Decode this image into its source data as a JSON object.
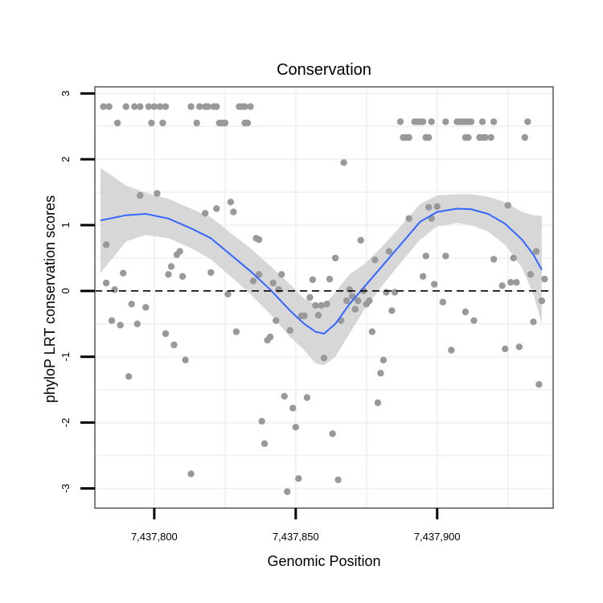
{
  "chart_data": {
    "type": "scatter",
    "title": "Conservation",
    "xlabel": "Genomic Position",
    "ylabel": "phyloP LRT conservation scores",
    "xlim": [
      7437779,
      7437941
    ],
    "ylim": [
      -3.3,
      3.1
    ],
    "x_ticks": [
      7437800,
      7437850,
      7437900
    ],
    "x_tick_labels": [
      "7,437,800",
      "7,437,850",
      "7,437,900"
    ],
    "y_ticks": [
      -3,
      -2,
      -1,
      0,
      1,
      2,
      3
    ],
    "y_tick_labels": [
      "-3",
      "-2",
      "-1",
      "0",
      "1",
      "2",
      "3"
    ],
    "grid": true,
    "reference_line": {
      "y": 0,
      "style": "dashed"
    },
    "colors": {
      "points": "#999999",
      "smooth_line": "#3366ff",
      "confidence_band": "#d3d3d3",
      "panel_border": "#808080",
      "grid": "#f2f2f2"
    },
    "points": [
      {
        "x": 7437782,
        "y": 2.8
      },
      {
        "x": 7437784,
        "y": 2.8
      },
      {
        "x": 7437787,
        "y": 2.55
      },
      {
        "x": 7437790,
        "y": 2.8
      },
      {
        "x": 7437793,
        "y": 2.8
      },
      {
        "x": 7437795,
        "y": 2.8
      },
      {
        "x": 7437798,
        "y": 2.8
      },
      {
        "x": 7437800,
        "y": 2.8
      },
      {
        "x": 7437802,
        "y": 2.8
      },
      {
        "x": 7437804,
        "y": 2.8
      },
      {
        "x": 7437799,
        "y": 2.55
      },
      {
        "x": 7437803,
        "y": 2.55
      },
      {
        "x": 7437813,
        "y": 2.8
      },
      {
        "x": 7437816,
        "y": 2.8
      },
      {
        "x": 7437818,
        "y": 2.8
      },
      {
        "x": 7437819,
        "y": 2.8
      },
      {
        "x": 7437821,
        "y": 2.8
      },
      {
        "x": 7437822,
        "y": 2.8
      },
      {
        "x": 7437815,
        "y": 2.55
      },
      {
        "x": 7437823,
        "y": 2.55
      },
      {
        "x": 7437824,
        "y": 2.55
      },
      {
        "x": 7437825,
        "y": 2.55
      },
      {
        "x": 7437830,
        "y": 2.8
      },
      {
        "x": 7437831,
        "y": 2.8
      },
      {
        "x": 7437832,
        "y": 2.8
      },
      {
        "x": 7437834,
        "y": 2.8
      },
      {
        "x": 7437832,
        "y": 2.55
      },
      {
        "x": 7437833,
        "y": 2.55
      },
      {
        "x": 7437887,
        "y": 2.57
      },
      {
        "x": 7437892,
        "y": 2.57
      },
      {
        "x": 7437893,
        "y": 2.57
      },
      {
        "x": 7437894,
        "y": 2.57
      },
      {
        "x": 7437895,
        "y": 2.57
      },
      {
        "x": 7437898,
        "y": 2.57
      },
      {
        "x": 7437903,
        "y": 2.57
      },
      {
        "x": 7437907,
        "y": 2.57
      },
      {
        "x": 7437908,
        "y": 2.57
      },
      {
        "x": 7437909,
        "y": 2.57
      },
      {
        "x": 7437910,
        "y": 2.57
      },
      {
        "x": 7437911,
        "y": 2.57
      },
      {
        "x": 7437912,
        "y": 2.57
      },
      {
        "x": 7437916,
        "y": 2.57
      },
      {
        "x": 7437920,
        "y": 2.57
      },
      {
        "x": 7437932,
        "y": 2.57
      },
      {
        "x": 7437888,
        "y": 2.33
      },
      {
        "x": 7437889,
        "y": 2.33
      },
      {
        "x": 7437890,
        "y": 2.33
      },
      {
        "x": 7437896,
        "y": 2.33
      },
      {
        "x": 7437897,
        "y": 2.33
      },
      {
        "x": 7437910,
        "y": 2.33
      },
      {
        "x": 7437911,
        "y": 2.33
      },
      {
        "x": 7437915,
        "y": 2.33
      },
      {
        "x": 7437916,
        "y": 2.33
      },
      {
        "x": 7437917,
        "y": 2.33
      },
      {
        "x": 7437919,
        "y": 2.33
      },
      {
        "x": 7437931,
        "y": 2.33
      },
      {
        "x": 7437783,
        "y": 0.7
      },
      {
        "x": 7437783,
        "y": 0.12
      },
      {
        "x": 7437785,
        "y": -0.45
      },
      {
        "x": 7437786,
        "y": 0.02
      },
      {
        "x": 7437788,
        "y": -0.52
      },
      {
        "x": 7437789,
        "y": 0.27
      },
      {
        "x": 7437791,
        "y": -1.3
      },
      {
        "x": 7437792,
        "y": -0.2
      },
      {
        "x": 7437794,
        "y": -0.5
      },
      {
        "x": 7437795,
        "y": 1.45
      },
      {
        "x": 7437797,
        "y": -0.25
      },
      {
        "x": 7437801,
        "y": 1.48
      },
      {
        "x": 7437804,
        "y": -0.65
      },
      {
        "x": 7437805,
        "y": 0.25
      },
      {
        "x": 7437806,
        "y": 0.37
      },
      {
        "x": 7437807,
        "y": -0.82
      },
      {
        "x": 7437808,
        "y": 0.55
      },
      {
        "x": 7437809,
        "y": 0.6
      },
      {
        "x": 7437810,
        "y": 0.22
      },
      {
        "x": 7437811,
        "y": -1.05
      },
      {
        "x": 7437813,
        "y": -2.78
      },
      {
        "x": 7437818,
        "y": 1.18
      },
      {
        "x": 7437820,
        "y": 0.28
      },
      {
        "x": 7437822,
        "y": 1.25
      },
      {
        "x": 7437826,
        "y": -0.05
      },
      {
        "x": 7437827,
        "y": 1.35
      },
      {
        "x": 7437828,
        "y": 1.2
      },
      {
        "x": 7437829,
        "y": -0.62
      },
      {
        "x": 7437835,
        "y": 0.15
      },
      {
        "x": 7437836,
        "y": 0.8
      },
      {
        "x": 7437837,
        "y": 0.78
      },
      {
        "x": 7437837,
        "y": 0.25
      },
      {
        "x": 7437838,
        "y": -1.98
      },
      {
        "x": 7437839,
        "y": -2.32
      },
      {
        "x": 7437840,
        "y": -0.75
      },
      {
        "x": 7437841,
        "y": -0.7
      },
      {
        "x": 7437842,
        "y": 0.12
      },
      {
        "x": 7437843,
        "y": -0.45
      },
      {
        "x": 7437844,
        "y": 0.02
      },
      {
        "x": 7437845,
        "y": 0.25
      },
      {
        "x": 7437846,
        "y": -1.6
      },
      {
        "x": 7437847,
        "y": -3.05
      },
      {
        "x": 7437848,
        "y": -0.6
      },
      {
        "x": 7437849,
        "y": -1.78
      },
      {
        "x": 7437850,
        "y": -2.07
      },
      {
        "x": 7437851,
        "y": -2.85
      },
      {
        "x": 7437852,
        "y": -0.38
      },
      {
        "x": 7437853,
        "y": -0.38
      },
      {
        "x": 7437854,
        "y": -1.62
      },
      {
        "x": 7437855,
        "y": -0.1
      },
      {
        "x": 7437856,
        "y": 0.17
      },
      {
        "x": 7437857,
        "y": -0.22
      },
      {
        "x": 7437858,
        "y": -0.37
      },
      {
        "x": 7437859,
        "y": -0.22
      },
      {
        "x": 7437860,
        "y": -1.02
      },
      {
        "x": 7437861,
        "y": -0.2
      },
      {
        "x": 7437862,
        "y": 0.18
      },
      {
        "x": 7437863,
        "y": -2.17
      },
      {
        "x": 7437864,
        "y": 0.5
      },
      {
        "x": 7437865,
        "y": -2.87
      },
      {
        "x": 7437866,
        "y": -0.45
      },
      {
        "x": 7437867,
        "y": 1.95
      },
      {
        "x": 7437868,
        "y": -0.15
      },
      {
        "x": 7437869,
        "y": 0.02
      },
      {
        "x": 7437870,
        "y": -0.08
      },
      {
        "x": 7437871,
        "y": -0.28
      },
      {
        "x": 7437872,
        "y": -0.15
      },
      {
        "x": 7437873,
        "y": 0.77
      },
      {
        "x": 7437874,
        "y": 0.0
      },
      {
        "x": 7437875,
        "y": -0.2
      },
      {
        "x": 7437876,
        "y": -0.15
      },
      {
        "x": 7437877,
        "y": -0.62
      },
      {
        "x": 7437878,
        "y": 0.47
      },
      {
        "x": 7437879,
        "y": -1.7
      },
      {
        "x": 7437880,
        "y": -1.25
      },
      {
        "x": 7437881,
        "y": -1.05
      },
      {
        "x": 7437882,
        "y": -0.02
      },
      {
        "x": 7437883,
        "y": 0.6
      },
      {
        "x": 7437884,
        "y": -0.3
      },
      {
        "x": 7437885,
        "y": -0.02
      },
      {
        "x": 7437890,
        "y": 1.1
      },
      {
        "x": 7437895,
        "y": 0.22
      },
      {
        "x": 7437896,
        "y": 0.53
      },
      {
        "x": 7437897,
        "y": 1.27
      },
      {
        "x": 7437898,
        "y": 1.1
      },
      {
        "x": 7437899,
        "y": 0.1
      },
      {
        "x": 7437900,
        "y": 1.28
      },
      {
        "x": 7437902,
        "y": -0.17
      },
      {
        "x": 7437903,
        "y": 0.53
      },
      {
        "x": 7437905,
        "y": -0.9
      },
      {
        "x": 7437910,
        "y": -0.32
      },
      {
        "x": 7437913,
        "y": -0.45
      },
      {
        "x": 7437920,
        "y": 0.48
      },
      {
        "x": 7437923,
        "y": 0.08
      },
      {
        "x": 7437924,
        "y": -0.88
      },
      {
        "x": 7437925,
        "y": 1.3
      },
      {
        "x": 7437926,
        "y": 0.13
      },
      {
        "x": 7437927,
        "y": 0.5
      },
      {
        "x": 7437928,
        "y": 0.13
      },
      {
        "x": 7437929,
        "y": -0.85
      },
      {
        "x": 7437933,
        "y": 0.25
      },
      {
        "x": 7437934,
        "y": -0.47
      },
      {
        "x": 7437935,
        "y": 0.6
      },
      {
        "x": 7437936,
        "y": -1.42
      },
      {
        "x": 7437937,
        "y": -0.15
      },
      {
        "x": 7437938,
        "y": 0.18
      }
    ],
    "smooth": {
      "x": [
        7437781,
        7437790,
        7437797,
        7437805,
        7437813,
        7437820,
        7437827,
        7437834,
        7437841,
        7437848,
        7437853,
        7437857,
        7437860,
        7437864,
        7437869,
        7437874,
        7437880,
        7437887,
        7437894,
        7437900,
        7437907,
        7437912,
        7437918,
        7437924,
        7437930,
        7437934,
        7437937
      ],
      "y": [
        1.07,
        1.15,
        1.17,
        1.1,
        0.95,
        0.8,
        0.55,
        0.3,
        0.02,
        -0.3,
        -0.5,
        -0.62,
        -0.65,
        -0.5,
        -0.2,
        0.05,
        0.35,
        0.7,
        1.05,
        1.2,
        1.25,
        1.24,
        1.17,
        1.02,
        0.78,
        0.55,
        0.32
      ],
      "lower": [
        0.27,
        0.75,
        0.85,
        0.8,
        0.65,
        0.48,
        0.22,
        -0.05,
        -0.35,
        -0.7,
        -0.9,
        -1.1,
        -1.13,
        -1.0,
        -0.65,
        -0.3,
        0.05,
        0.42,
        0.78,
        0.98,
        1.03,
        1.0,
        0.9,
        0.7,
        0.35,
        -0.05,
        -0.5
      ],
      "upper": [
        1.87,
        1.6,
        1.49,
        1.4,
        1.25,
        1.12,
        0.88,
        0.65,
        0.38,
        0.1,
        -0.12,
        -0.2,
        -0.22,
        -0.02,
        0.25,
        0.4,
        0.65,
        0.98,
        1.32,
        1.45,
        1.47,
        1.47,
        1.43,
        1.35,
        1.2,
        1.15,
        1.14
      ]
    }
  }
}
